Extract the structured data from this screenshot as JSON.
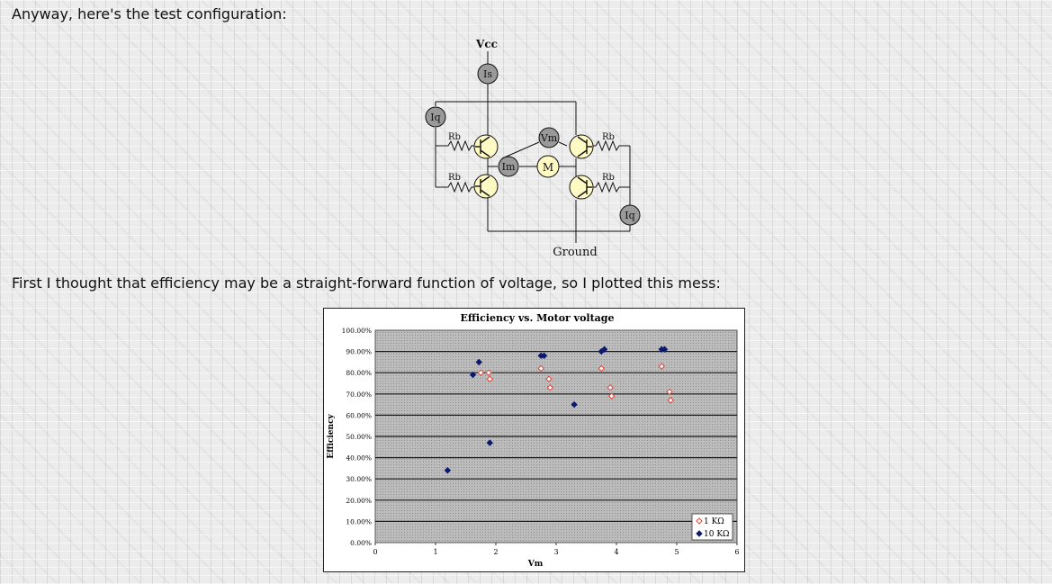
{
  "text": {
    "intro": "Anyway, here's the test configuration:",
    "plot_intro": "First I thought that efficiency may be a straight-forward function of voltage, so I plotted this mess:"
  },
  "circuit": {
    "vcc": "Vcc",
    "ground": "Ground",
    "is": "Is",
    "iq_top": "Iq",
    "iq_bottom": "Iq",
    "rb_tl": "Rb",
    "rb_bl": "Rb",
    "rb_tr": "Rb",
    "rb_br": "Rb",
    "vm": "Vm",
    "im": "Im",
    "motor": "M",
    "colors": {
      "meter": "#9a9a9a",
      "transistor": "#fff9c4"
    }
  },
  "chart_data": {
    "type": "scatter",
    "title": "Efficiency vs. Motor voltage",
    "xlabel": "Vm",
    "ylabel": "Efficiency",
    "xlim": [
      0,
      6
    ],
    "ylim": [
      0,
      100
    ],
    "x_ticks": [
      "0",
      "1",
      "2",
      "3",
      "4",
      "5",
      "6"
    ],
    "y_ticks": [
      "0.00%",
      "10.00%",
      "20.00%",
      "30.00%",
      "40.00%",
      "50.00%",
      "60.00%",
      "70.00%",
      "80.00%",
      "90.00%",
      "100.00%"
    ],
    "grid": true,
    "legend_position": "bottom-right",
    "series": [
      {
        "name": "1 KΩ",
        "marker": "open-diamond",
        "color": "#e0453a",
        "points": [
          [
            1.75,
            80
          ],
          [
            1.88,
            80
          ],
          [
            1.9,
            77
          ],
          [
            2.75,
            82
          ],
          [
            2.88,
            77
          ],
          [
            2.9,
            73
          ],
          [
            3.75,
            82
          ],
          [
            3.9,
            73
          ],
          [
            3.92,
            69
          ],
          [
            4.75,
            83
          ],
          [
            4.88,
            71
          ],
          [
            4.9,
            67
          ]
        ]
      },
      {
        "name": "10 KΩ",
        "marker": "filled-diamond",
        "color": "#0c1a6e",
        "points": [
          [
            1.2,
            34
          ],
          [
            1.62,
            79
          ],
          [
            1.72,
            85
          ],
          [
            1.9,
            47
          ],
          [
            2.75,
            88
          ],
          [
            2.8,
            88
          ],
          [
            3.3,
            65
          ],
          [
            3.75,
            90
          ],
          [
            3.8,
            91
          ],
          [
            4.75,
            91
          ],
          [
            4.8,
            91
          ]
        ]
      }
    ]
  }
}
